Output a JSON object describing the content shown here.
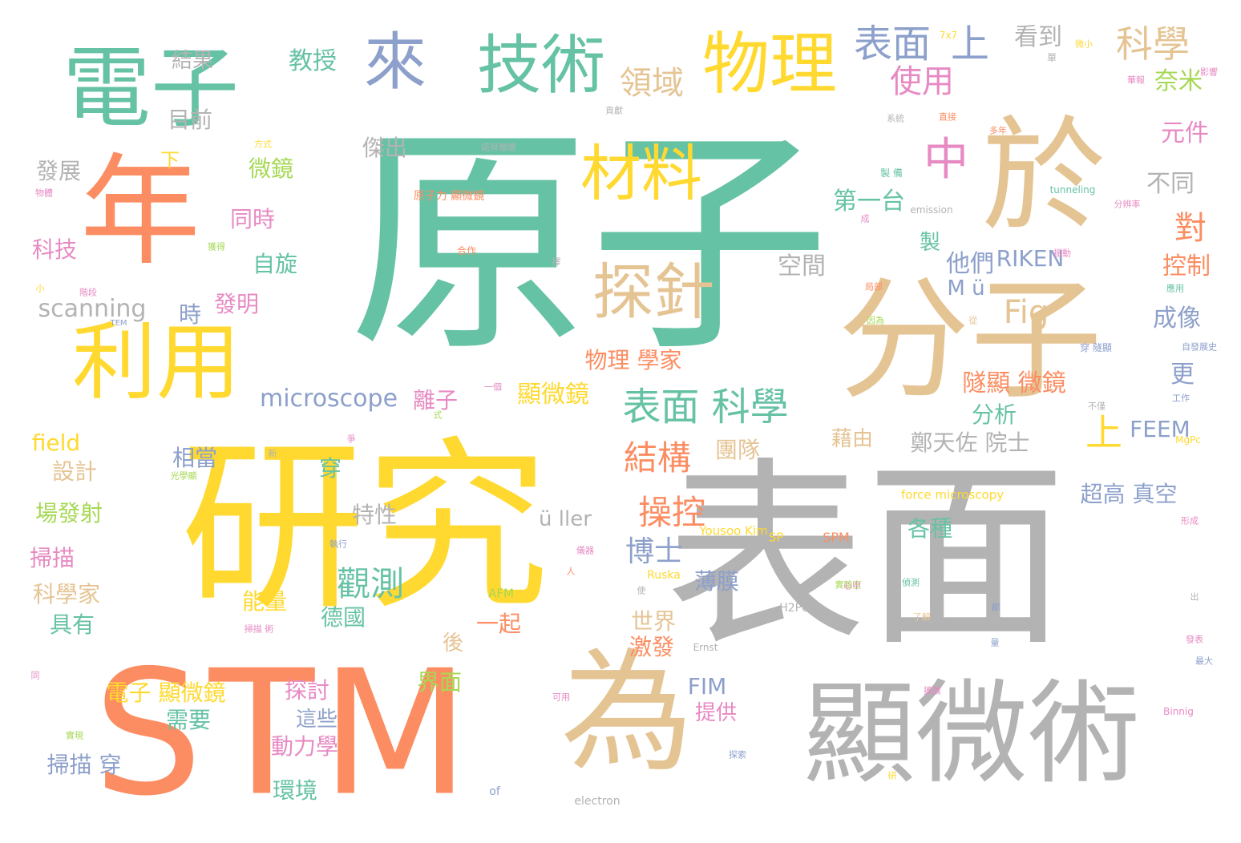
{
  "palette": {
    "green": "#66c2a5",
    "orange": "#fc8d62",
    "blue": "#8da0cb",
    "pink": "#e78ac3",
    "lime": "#a6d854",
    "yellow": "#ffd92f",
    "tan": "#e5c494",
    "gray": "#b3b3b3"
  },
  "words": [
    {
      "text": "原子",
      "color": "green"
    },
    {
      "text": "表面",
      "color": "gray"
    },
    {
      "text": "研究",
      "color": "yellow"
    },
    {
      "text": "STM",
      "color": "orange"
    },
    {
      "text": "分子",
      "color": "tan"
    },
    {
      "text": "於",
      "color": "tan"
    },
    {
      "text": "顯微術",
      "color": "gray"
    },
    {
      "text": "為",
      "color": "tan"
    },
    {
      "text": "年",
      "color": "orange"
    },
    {
      "text": "電子",
      "color": "green"
    },
    {
      "text": "利用",
      "color": "yellow"
    },
    {
      "text": "技術",
      "color": "green"
    },
    {
      "text": "物理",
      "color": "yellow"
    },
    {
      "text": "來",
      "color": "blue"
    },
    {
      "text": "材料",
      "color": "yellow"
    },
    {
      "text": "探針",
      "color": "tan"
    },
    {
      "text": "中",
      "color": "pink"
    },
    {
      "text": "表面",
      "color": "blue"
    },
    {
      "text": "上",
      "color": "blue"
    },
    {
      "text": "科學",
      "color": "tan"
    },
    {
      "text": "表面 科學",
      "color": "green"
    },
    {
      "text": "領域",
      "color": "tan"
    },
    {
      "text": "使用",
      "color": "pink"
    },
    {
      "text": "結構",
      "color": "orange"
    },
    {
      "text": "操控",
      "color": "orange"
    },
    {
      "text": "博士",
      "color": "blue"
    },
    {
      "text": "觀測",
      "color": "green"
    },
    {
      "text": "上",
      "color": "yellow"
    },
    {
      "text": "對",
      "color": "orange"
    },
    {
      "text": "Fig",
      "color": "tan"
    },
    {
      "text": "microscope",
      "color": "blue"
    },
    {
      "text": "scanning",
      "color": "gray"
    },
    {
      "text": "看到",
      "color": "gray"
    },
    {
      "text": "教授",
      "color": "green"
    },
    {
      "text": "奈米",
      "color": "lime"
    },
    {
      "text": "元件",
      "color": "pink"
    },
    {
      "text": "第一台",
      "color": "green"
    },
    {
      "text": "不同",
      "color": "gray"
    },
    {
      "text": "控制",
      "color": "orange"
    },
    {
      "text": "RIKEN",
      "color": "blue"
    },
    {
      "text": "他們",
      "color": "blue"
    },
    {
      "text": "空間",
      "color": "gray"
    },
    {
      "text": "成像",
      "color": "blue"
    },
    {
      "text": "物理 學家",
      "color": "orange"
    },
    {
      "text": "隧顯 微鏡",
      "color": "orange"
    },
    {
      "text": "更",
      "color": "blue"
    },
    {
      "text": "分析",
      "color": "green"
    },
    {
      "text": "FEEM",
      "color": "blue"
    },
    {
      "text": "顯微鏡",
      "color": "yellow"
    },
    {
      "text": "離子",
      "color": "pink"
    },
    {
      "text": "鄭天佐 院士",
      "color": "gray"
    },
    {
      "text": "藉由",
      "color": "tan"
    },
    {
      "text": "團隊",
      "color": "tan"
    },
    {
      "text": "超高 真空",
      "color": "blue"
    },
    {
      "text": "各種",
      "color": "green"
    },
    {
      "text": "ü ller",
      "color": "gray"
    },
    {
      "text": "M ü",
      "color": "blue"
    },
    {
      "text": "特性",
      "color": "gray"
    },
    {
      "text": "發明",
      "color": "pink"
    },
    {
      "text": "時",
      "color": "blue"
    },
    {
      "text": "自旋",
      "color": "green"
    },
    {
      "text": "同時",
      "color": "pink"
    },
    {
      "text": "微鏡",
      "color": "lime"
    },
    {
      "text": "傑出",
      "color": "gray"
    },
    {
      "text": "發展",
      "color": "gray"
    },
    {
      "text": "科技",
      "color": "pink"
    },
    {
      "text": "目前",
      "color": "gray"
    },
    {
      "text": "結果",
      "color": "gray"
    },
    {
      "text": "下",
      "color": "yellow"
    },
    {
      "text": "field",
      "color": "yellow"
    },
    {
      "text": "設計",
      "color": "tan"
    },
    {
      "text": "場發射",
      "color": "lime"
    },
    {
      "text": "掃描",
      "color": "pink"
    },
    {
      "text": "科學家",
      "color": "tan"
    },
    {
      "text": "具有",
      "color": "green"
    },
    {
      "text": "相當",
      "color": "blue"
    },
    {
      "text": "穿",
      "color": "green"
    },
    {
      "text": "薄膜",
      "color": "blue"
    },
    {
      "text": "能量",
      "color": "yellow"
    },
    {
      "text": "德國",
      "color": "green"
    },
    {
      "text": "一起",
      "color": "orange"
    },
    {
      "text": "世界",
      "color": "tan"
    },
    {
      "text": "後",
      "color": "tan"
    },
    {
      "text": "激發",
      "color": "orange"
    },
    {
      "text": "界面",
      "color": "lime"
    },
    {
      "text": "探討",
      "color": "pink"
    },
    {
      "text": "電子 顯微鏡",
      "color": "yellow"
    },
    {
      "text": "需要",
      "color": "green"
    },
    {
      "text": "這些",
      "color": "blue"
    },
    {
      "text": "動力學",
      "color": "pink"
    },
    {
      "text": "掃描 穿",
      "color": "blue"
    },
    {
      "text": "環境",
      "color": "green"
    },
    {
      "text": "FIM",
      "color": "blue"
    },
    {
      "text": "提供",
      "color": "pink"
    },
    {
      "text": "製",
      "color": "green"
    },
    {
      "text": "force microscopy",
      "color": "yellow"
    },
    {
      "text": "Yousoo Kim",
      "color": "yellow"
    },
    {
      "text": "SPM",
      "color": "orange"
    },
    {
      "text": "SP",
      "color": "yellow"
    },
    {
      "text": "AFM",
      "color": "lime"
    },
    {
      "text": "H2Pc",
      "color": "gray"
    },
    {
      "text": "Ruska",
      "color": "yellow"
    },
    {
      "text": "electron",
      "color": "gray"
    },
    {
      "text": "of",
      "color": "blue"
    },
    {
      "text": "Ernst",
      "color": "gray"
    },
    {
      "text": "tunneling",
      "color": "green"
    },
    {
      "text": "emission",
      "color": "gray"
    },
    {
      "text": "7x7",
      "color": "yellow"
    },
    {
      "text": "Binnig",
      "color": "pink"
    },
    {
      "text": "MgPc",
      "color": "yellow"
    },
    {
      "text": "TEM",
      "color": "blue"
    },
    {
      "text": "原子力 顯微鏡",
      "color": "orange"
    },
    {
      "text": "合作",
      "color": "orange"
    },
    {
      "text": "方式",
      "color": "yellow"
    },
    {
      "text": "物體",
      "color": "pink"
    },
    {
      "text": "獲得",
      "color": "lime"
    },
    {
      "text": "光學顯",
      "color": "lime"
    },
    {
      "text": "貢獻",
      "color": "gray"
    },
    {
      "text": "諾貝爾獎",
      "color": "gray"
    },
    {
      "text": "單",
      "color": "gray"
    },
    {
      "text": "微小",
      "color": "yellow"
    },
    {
      "text": "華報",
      "color": "pink"
    },
    {
      "text": "影響",
      "color": "pink"
    },
    {
      "text": "系統",
      "color": "gray"
    },
    {
      "text": "直接",
      "color": "orange"
    },
    {
      "text": "多年",
      "color": "orange"
    },
    {
      "text": "製 備",
      "color": "green"
    },
    {
      "text": "分辨率",
      "color": "pink"
    },
    {
      "text": "振動",
      "color": "pink"
    },
    {
      "text": "應用",
      "color": "green"
    },
    {
      "text": "自發展史",
      "color": "blue"
    },
    {
      "text": "穿 隧顯",
      "color": "blue"
    },
    {
      "text": "工作",
      "color": "blue"
    },
    {
      "text": "不僅",
      "color": "gray"
    },
    {
      "text": "因為",
      "color": "lime"
    },
    {
      "text": "局部",
      "color": "orange"
    },
    {
      "text": "從",
      "color": "tan"
    },
    {
      "text": "實驗室",
      "color": "lime"
    },
    {
      "text": "了解",
      "color": "tan"
    },
    {
      "text": "心中",
      "color": "pink"
    },
    {
      "text": "可用",
      "color": "pink"
    },
    {
      "text": "探索",
      "color": "blue"
    },
    {
      "text": "形成",
      "color": "pink"
    },
    {
      "text": "發表",
      "color": "pink"
    },
    {
      "text": "使",
      "color": "gray"
    },
    {
      "text": "出",
      "color": "gray"
    },
    {
      "text": "都",
      "color": "blue"
    },
    {
      "text": "研",
      "color": "yellow"
    },
    {
      "text": "一個",
      "color": "pink"
    },
    {
      "text": "小",
      "color": "yellow"
    },
    {
      "text": "同",
      "color": "pink"
    },
    {
      "text": "新",
      "color": "gray"
    },
    {
      "text": "爭",
      "color": "pink"
    },
    {
      "text": "人",
      "color": "orange"
    },
    {
      "text": "式",
      "color": "lime"
    },
    {
      "text": "擇",
      "color": "gray"
    },
    {
      "text": "成",
      "color": "pink"
    },
    {
      "text": "量",
      "color": "blue"
    },
    {
      "text": "實現",
      "color": "lime"
    },
    {
      "text": "執行",
      "color": "blue"
    },
    {
      "text": "偵測",
      "color": "green"
    },
    {
      "text": "儀器",
      "color": "pink"
    },
    {
      "text": "掃描 術",
      "color": "pink"
    },
    {
      "text": "擴展",
      "color": "pink"
    },
    {
      "text": "階段",
      "color": "pink"
    },
    {
      "text": "最大",
      "color": "blue"
    }
  ]
}
